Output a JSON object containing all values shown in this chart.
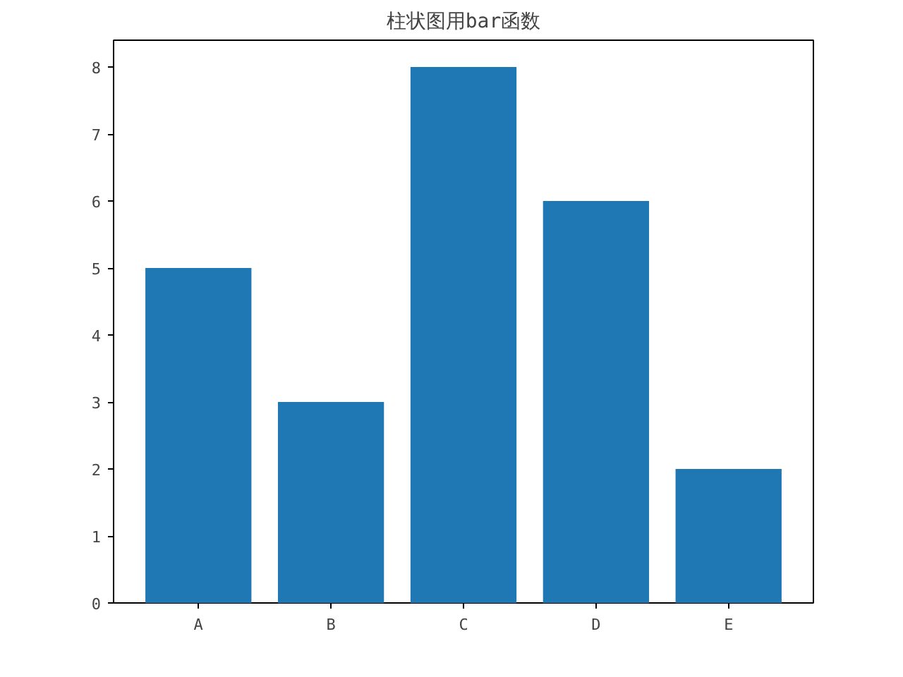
{
  "chart_data": {
    "type": "bar",
    "title": "柱状图用bar函数",
    "categories": [
      "A",
      "B",
      "C",
      "D",
      "E"
    ],
    "values": [
      5,
      3,
      8,
      6,
      2
    ],
    "color": "#1f77b4",
    "ylim": [
      0,
      8.4
    ],
    "yticks": [
      0,
      1,
      2,
      3,
      4,
      5,
      6,
      7,
      8
    ],
    "grid": false
  }
}
